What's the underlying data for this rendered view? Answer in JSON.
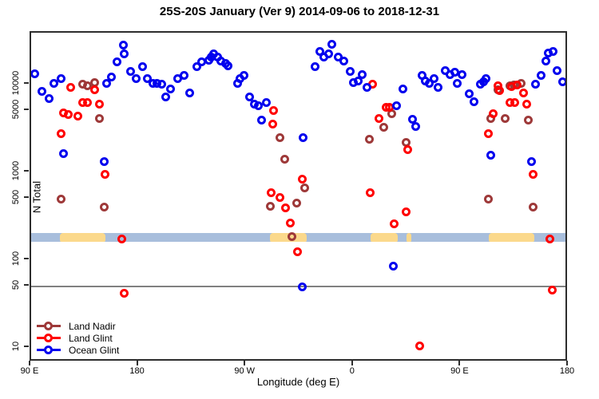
{
  "title": "25S-20S January (Ver 9)   2014-09-06 to 2018-12-31",
  "axes": {
    "x": {
      "label": "Longitude (deg E)",
      "range": [
        90,
        540
      ],
      "note": "longitude axis wraps eastward: 90E -> 180 -> 90W -> 0 -> 90E -> 180",
      "ticks": [
        {
          "value": 90,
          "label": "90 E"
        },
        {
          "value": 180,
          "label": "180"
        },
        {
          "value": 270,
          "label": "90 W"
        },
        {
          "value": 360,
          "label": "0"
        },
        {
          "value": 450,
          "label": "90 E"
        },
        {
          "value": 540,
          "label": "180"
        }
      ]
    },
    "y": {
      "label": "N Total",
      "scale": "log",
      "range": [
        8,
        39000
      ],
      "ticks": [
        {
          "value": 10,
          "label": "10"
        },
        {
          "value": 50,
          "label": "50"
        },
        {
          "value": 100,
          "label": "100"
        },
        {
          "value": 500,
          "label": "500"
        },
        {
          "value": 1000,
          "label": "1000"
        },
        {
          "value": 5000,
          "label": "5000"
        },
        {
          "value": 10000,
          "label": "10000"
        }
      ]
    }
  },
  "reference_line": {
    "value": 50,
    "color": "#808080"
  },
  "land_ocean_strip": {
    "description": "land/ocean map band for 25S-20S vs longitude",
    "center_value": 180,
    "ocean_color": "#a8bedc",
    "land_color": "#fbd98c",
    "land_segments": [
      {
        "name": "australia",
        "from": 114,
        "to": 152
      },
      {
        "name": "south-america",
        "from": 290,
        "to": 321
      },
      {
        "name": "africa",
        "from": 374,
        "to": 397
      },
      {
        "name": "madagascar",
        "from": 404,
        "to": 408
      },
      {
        "name": "australia-wrap",
        "from": 473,
        "to": 511
      }
    ]
  },
  "legend": {
    "items": [
      {
        "label": "Land Nadir",
        "color": "#9e3939"
      },
      {
        "label": "Land Glint",
        "color": "#ff0000"
      },
      {
        "label": "Ocean Glint",
        "color": "#0000ee"
      }
    ]
  },
  "chart_data": {
    "type": "scatter",
    "title": "25S-20S January (Ver 9)   2014-09-06 to 2018-12-31",
    "xlabel": "Longitude (deg E)",
    "ylabel": "N Total",
    "xlim": [
      90,
      540
    ],
    "ylog": true,
    "series": [
      {
        "name": "Land Nadir",
        "color": "#9e3939",
        "points": [
          [
            133,
            10200
          ],
          [
            137,
            9600
          ],
          [
            143,
            10600
          ],
          [
            147,
            4150
          ],
          [
            115,
            500
          ],
          [
            151,
            400
          ],
          [
            298,
            2460
          ],
          [
            302,
            1400
          ],
          [
            319,
            660
          ],
          [
            290,
            410
          ],
          [
            312,
            450
          ],
          [
            308,
            185
          ],
          [
            373,
            2360
          ],
          [
            385,
            3230
          ],
          [
            392,
            4700
          ],
          [
            404,
            2170
          ],
          [
            473,
            500
          ],
          [
            475,
            4150
          ],
          [
            487,
            4150
          ],
          [
            481,
            8800
          ],
          [
            491,
            9600
          ],
          [
            494,
            9800
          ],
          [
            500,
            10400
          ],
          [
            506,
            3900
          ],
          [
            510,
            400
          ]
        ]
      },
      {
        "name": "Land Glint",
        "color": "#ff0000",
        "points": [
          [
            123,
            9200
          ],
          [
            143,
            8800
          ],
          [
            133,
            6300
          ],
          [
            137,
            6300
          ],
          [
            147,
            6050
          ],
          [
            117,
            4800
          ],
          [
            121,
            4600
          ],
          [
            129,
            4400
          ],
          [
            115,
            2780
          ],
          [
            152,
            950
          ],
          [
            166,
            175
          ],
          [
            168,
            42
          ],
          [
            293,
            5100
          ],
          [
            292,
            3580
          ],
          [
            317,
            845
          ],
          [
            291,
            590
          ],
          [
            298,
            520
          ],
          [
            303,
            390
          ],
          [
            307,
            265
          ],
          [
            313,
            125
          ],
          [
            374,
            590
          ],
          [
            376,
            10200
          ],
          [
            381,
            4150
          ],
          [
            387,
            5450
          ],
          [
            390,
            5450
          ],
          [
            394,
            260
          ],
          [
            405,
            1830
          ],
          [
            404,
            355
          ],
          [
            415,
            10.5
          ],
          [
            473,
            2780
          ],
          [
            477,
            4700
          ],
          [
            481,
            9600
          ],
          [
            482,
            8500
          ],
          [
            492,
            9400
          ],
          [
            497,
            9800
          ],
          [
            502,
            8100
          ],
          [
            491,
            6200
          ],
          [
            495,
            6200
          ],
          [
            505,
            6050
          ],
          [
            510,
            945
          ],
          [
            524,
            175
          ],
          [
            526,
            46
          ]
        ]
      },
      {
        "name": "Ocean Glint",
        "color": "#0000ee",
        "points": [
          [
            93,
            13400
          ],
          [
            99,
            8300
          ],
          [
            105,
            6900
          ],
          [
            109,
            10400
          ],
          [
            115,
            11800
          ],
          [
            153,
            10400
          ],
          [
            157,
            12100
          ],
          [
            162,
            18300
          ],
          [
            117,
            1650
          ],
          [
            151,
            1340
          ],
          [
            167,
            27900
          ],
          [
            168,
            22200
          ],
          [
            173,
            14000
          ],
          [
            178,
            11600
          ],
          [
            183,
            15900
          ],
          [
            187,
            11600
          ],
          [
            192,
            10400
          ],
          [
            195,
            10400
          ],
          [
            199,
            10200
          ],
          [
            203,
            7300
          ],
          [
            207,
            8900
          ],
          [
            213,
            11600
          ],
          [
            218,
            12600
          ],
          [
            223,
            8100
          ],
          [
            229,
            15900
          ],
          [
            233,
            18300
          ],
          [
            239,
            19100
          ],
          [
            241,
            20400
          ],
          [
            243,
            22200
          ],
          [
            246,
            20800
          ],
          [
            249,
            18700
          ],
          [
            253,
            17500
          ],
          [
            255,
            16500
          ],
          [
            263,
            10400
          ],
          [
            265,
            11800
          ],
          [
            268,
            12600
          ],
          [
            273,
            7300
          ],
          [
            277,
            6050
          ],
          [
            280,
            5800
          ],
          [
            287,
            6200
          ],
          [
            283,
            3900
          ],
          [
            318,
            2460
          ],
          [
            317,
            50
          ],
          [
            328,
            15900
          ],
          [
            332,
            23600
          ],
          [
            335,
            20400
          ],
          [
            339,
            22200
          ],
          [
            342,
            28500
          ],
          [
            347,
            20400
          ],
          [
            352,
            18700
          ],
          [
            357,
            14000
          ],
          [
            360,
            10600
          ],
          [
            364,
            11100
          ],
          [
            367,
            13100
          ],
          [
            371,
            9200
          ],
          [
            396,
            5800
          ],
          [
            393,
            85
          ],
          [
            401,
            9000
          ],
          [
            409,
            4000
          ],
          [
            412,
            3300
          ],
          [
            417,
            12600
          ],
          [
            420,
            11100
          ],
          [
            423,
            10400
          ],
          [
            427,
            11800
          ],
          [
            431,
            9200
          ],
          [
            437,
            14300
          ],
          [
            441,
            12900
          ],
          [
            445,
            13700
          ],
          [
            447,
            10400
          ],
          [
            451,
            13100
          ],
          [
            457,
            7800
          ],
          [
            461,
            6400
          ],
          [
            466,
            10200
          ],
          [
            469,
            10800
          ],
          [
            471,
            11800
          ],
          [
            475,
            1580
          ],
          [
            509,
            1340
          ],
          [
            512,
            10200
          ],
          [
            517,
            12600
          ],
          [
            521,
            18700
          ],
          [
            523,
            22700
          ],
          [
            527,
            23600
          ],
          [
            530,
            14300
          ],
          [
            535,
            10800
          ]
        ]
      }
    ]
  }
}
